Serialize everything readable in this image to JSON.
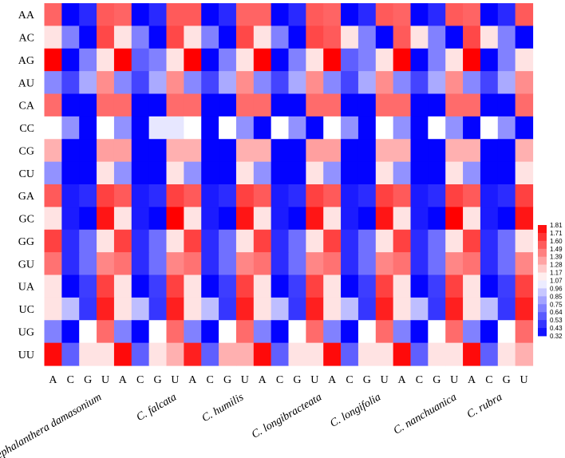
{
  "chart_data": {
    "type": "heatmap",
    "rows": [
      "AA",
      "AC",
      "AG",
      "AU",
      "CA",
      "CC",
      "CG",
      "CU",
      "GA",
      "GC",
      "GG",
      "GU",
      "UA",
      "UC",
      "UG",
      "UU"
    ],
    "column_letters": [
      "A",
      "C",
      "G",
      "U"
    ],
    "species": [
      "Cephalanthera damasonium",
      "C. falcata",
      "C. humilis",
      "C. longibracteata",
      "C. longifolia",
      "C. nanchuanica",
      "C. rubra"
    ],
    "values": [
      [
        [
          1.52,
          0.33,
          0.44,
          1.55
        ],
        [
          1.52,
          0.33,
          0.44,
          1.55
        ],
        [
          1.55,
          0.33,
          0.44,
          1.52
        ],
        [
          1.52,
          0.33,
          0.44,
          1.55
        ],
        [
          1.52,
          0.33,
          0.44,
          1.55
        ],
        [
          1.52,
          0.33,
          0.44,
          1.55
        ],
        [
          1.52,
          0.33,
          0.44,
          1.55
        ]
      ],
      [
        [
          1.15,
          0.7,
          0.33,
          1.6
        ],
        [
          1.15,
          0.7,
          0.33,
          1.6
        ],
        [
          1.15,
          0.7,
          0.33,
          1.6
        ],
        [
          1.15,
          0.7,
          0.33,
          1.6
        ],
        [
          1.55,
          1.15,
          0.7,
          0.33
        ],
        [
          1.55,
          1.15,
          0.7,
          0.33
        ],
        [
          1.6,
          1.15,
          0.7,
          0.33
        ]
      ],
      [
        [
          1.81,
          0.33,
          0.7,
          1.15
        ],
        [
          1.81,
          0.6,
          0.7,
          1.15
        ],
        [
          1.81,
          0.33,
          0.7,
          1.15
        ],
        [
          1.81,
          0.33,
          0.7,
          1.15
        ],
        [
          1.81,
          0.6,
          0.7,
          1.15
        ],
        [
          1.81,
          0.33,
          0.7,
          1.15
        ],
        [
          1.81,
          0.33,
          0.7,
          1.15
        ]
      ],
      [
        [
          0.72,
          0.52,
          0.82,
          1.4
        ],
        [
          0.72,
          0.52,
          0.82,
          1.4
        ],
        [
          0.72,
          0.52,
          0.82,
          1.4
        ],
        [
          0.72,
          0.52,
          0.82,
          1.4
        ],
        [
          0.72,
          0.52,
          0.82,
          1.4
        ],
        [
          0.72,
          0.52,
          0.82,
          1.4
        ],
        [
          0.72,
          0.52,
          0.82,
          1.4
        ]
      ],
      [
        [
          1.5,
          0.33,
          0.33,
          1.5
        ],
        [
          1.5,
          0.33,
          0.33,
          1.5
        ],
        [
          1.5,
          0.33,
          0.33,
          1.5
        ],
        [
          1.5,
          0.33,
          0.33,
          1.5
        ],
        [
          1.5,
          0.33,
          0.33,
          1.5
        ],
        [
          1.5,
          0.33,
          0.33,
          1.5
        ],
        [
          1.5,
          0.33,
          0.33,
          1.5
        ]
      ],
      [
        [
          1.07,
          0.75,
          0.33,
          1.07
        ],
        [
          0.75,
          0.33,
          1.0,
          1.0
        ],
        [
          1.07,
          0.33,
          1.07,
          0.75
        ],
        [
          0.33,
          1.07,
          0.75,
          0.33
        ],
        [
          1.07,
          0.75,
          0.33,
          1.07
        ],
        [
          0.75,
          0.33,
          1.07,
          0.75
        ],
        [
          0.33,
          1.07,
          0.75,
          0.33
        ]
      ],
      [
        [
          1.3,
          0.33,
          0.33,
          1.35
        ],
        [
          1.35,
          0.33,
          0.33,
          1.3
        ],
        [
          1.3,
          0.33,
          0.33,
          1.3
        ],
        [
          1.3,
          0.33,
          0.33,
          1.35
        ],
        [
          1.35,
          0.33,
          0.33,
          1.3
        ],
        [
          1.3,
          0.33,
          0.33,
          1.3
        ],
        [
          1.3,
          0.33,
          0.33,
          1.3
        ]
      ],
      [
        [
          0.75,
          0.33,
          0.33,
          1.15
        ],
        [
          0.75,
          0.33,
          0.33,
          1.15
        ],
        [
          0.75,
          0.33,
          0.33,
          1.15
        ],
        [
          0.75,
          0.33,
          0.33,
          1.15
        ],
        [
          0.75,
          0.33,
          0.33,
          1.15
        ],
        [
          0.75,
          0.33,
          0.33,
          1.15
        ],
        [
          0.75,
          0.33,
          0.33,
          1.15
        ]
      ],
      [
        [
          1.55,
          0.4,
          0.45,
          1.62
        ],
        [
          1.55,
          0.4,
          0.45,
          1.62
        ],
        [
          1.55,
          0.4,
          0.45,
          1.62
        ],
        [
          1.55,
          0.4,
          0.45,
          1.62
        ],
        [
          1.55,
          0.4,
          0.45,
          1.62
        ],
        [
          1.55,
          0.4,
          0.45,
          1.62
        ],
        [
          1.55,
          0.4,
          0.45,
          1.62
        ]
      ],
      [
        [
          1.15,
          0.4,
          0.33,
          1.75
        ],
        [
          1.15,
          0.4,
          0.33,
          1.81
        ],
        [
          1.15,
          0.4,
          0.33,
          1.75
        ],
        [
          1.15,
          0.4,
          0.33,
          1.75
        ],
        [
          1.15,
          0.4,
          0.33,
          1.75
        ],
        [
          1.15,
          0.4,
          0.33,
          1.81
        ],
        [
          1.15,
          0.4,
          0.33,
          1.75
        ]
      ],
      [
        [
          1.62,
          0.45,
          0.65,
          1.15
        ],
        [
          1.62,
          0.45,
          0.65,
          1.15
        ],
        [
          1.62,
          0.45,
          0.65,
          1.15
        ],
        [
          1.62,
          0.45,
          0.65,
          1.15
        ],
        [
          1.62,
          0.45,
          0.65,
          1.15
        ],
        [
          1.62,
          0.45,
          0.65,
          1.15
        ],
        [
          1.62,
          0.45,
          0.65,
          1.15
        ]
      ],
      [
        [
          1.48,
          0.45,
          0.65,
          1.42
        ],
        [
          1.48,
          0.45,
          0.65,
          1.42
        ],
        [
          1.48,
          0.45,
          0.65,
          1.42
        ],
        [
          1.48,
          0.45,
          0.65,
          1.42
        ],
        [
          1.48,
          0.45,
          0.65,
          1.42
        ],
        [
          1.48,
          0.45,
          0.65,
          1.42
        ],
        [
          1.48,
          0.45,
          0.65,
          1.42
        ]
      ],
      [
        [
          1.15,
          0.33,
          0.5,
          1.62
        ],
        [
          1.15,
          0.33,
          0.5,
          1.62
        ],
        [
          1.15,
          0.33,
          0.5,
          1.62
        ],
        [
          1.15,
          0.33,
          0.5,
          1.62
        ],
        [
          1.15,
          0.33,
          0.5,
          1.62
        ],
        [
          1.15,
          0.33,
          0.5,
          1.62
        ],
        [
          1.15,
          0.33,
          0.5,
          1.62
        ]
      ],
      [
        [
          1.15,
          0.88,
          0.48,
          1.72
        ],
        [
          1.15,
          0.88,
          0.48,
          1.72
        ],
        [
          1.15,
          0.88,
          0.48,
          1.72
        ],
        [
          1.15,
          0.88,
          0.48,
          1.72
        ],
        [
          1.15,
          0.88,
          0.48,
          1.72
        ],
        [
          1.15,
          0.88,
          0.48,
          1.72
        ],
        [
          1.15,
          0.88,
          0.48,
          1.72
        ]
      ],
      [
        [
          0.7,
          0.33,
          1.07,
          1.5
        ],
        [
          0.7,
          0.33,
          1.07,
          1.5
        ],
        [
          0.7,
          0.33,
          1.07,
          1.5
        ],
        [
          0.7,
          0.33,
          1.07,
          1.5
        ],
        [
          0.7,
          0.33,
          1.07,
          1.5
        ],
        [
          0.7,
          0.33,
          1.07,
          1.5
        ],
        [
          0.7,
          0.33,
          1.07,
          1.5
        ]
      ],
      [
        [
          1.78,
          0.6,
          1.15,
          1.15
        ],
        [
          1.78,
          0.6,
          1.15,
          1.3
        ],
        [
          1.72,
          0.6,
          1.3,
          1.3
        ],
        [
          1.78,
          0.6,
          1.15,
          1.15
        ],
        [
          1.78,
          0.6,
          1.15,
          1.15
        ],
        [
          1.78,
          0.6,
          1.15,
          1.15
        ],
        [
          1.78,
          0.6,
          1.15,
          1.3
        ]
      ]
    ],
    "color_scale": {
      "min": 0.32,
      "mid": 1.07,
      "max": 1.81,
      "low_color": "#0000ff",
      "mid_color": "#ffffff",
      "high_color": "#ff0000"
    },
    "legend_ticks": [
      "1.81",
      "1.71",
      "1.60",
      "1.49",
      "1.39",
      "1.28",
      "1.17",
      "1.07",
      "0.96",
      "0.85",
      "0.75",
      "0.64",
      "0.53",
      "0.43",
      "0.32"
    ],
    "legend_placement": "right"
  }
}
